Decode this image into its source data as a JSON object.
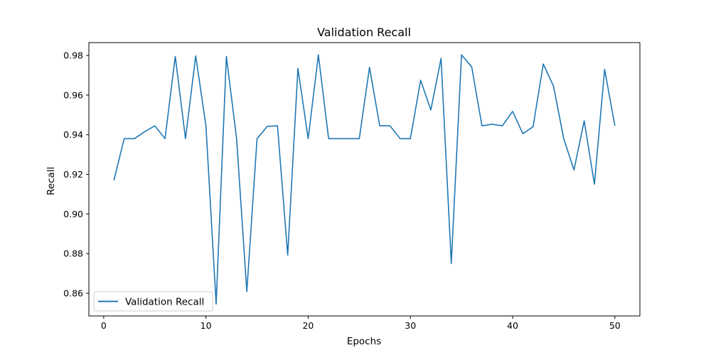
{
  "chart_data": {
    "type": "line",
    "title": "Validation Recall",
    "xlabel": "Epochs",
    "ylabel": "Recall",
    "xlim": [
      -1.45,
      52.45
    ],
    "ylim": [
      0.8485,
      0.9865
    ],
    "xticks": [
      0,
      10,
      20,
      30,
      40,
      50
    ],
    "xtick_labels": [
      "0",
      "10",
      "20",
      "30",
      "40",
      "50"
    ],
    "yticks": [
      0.86,
      0.88,
      0.9,
      0.92,
      0.94,
      0.96,
      0.98
    ],
    "ytick_labels": [
      "0.86",
      "0.88",
      "0.90",
      "0.92",
      "0.94",
      "0.96",
      "0.98"
    ],
    "grid": false,
    "legend_position": "lower-left",
    "series": [
      {
        "name": "Validation Recall",
        "color": "#1f77b4",
        "x": [
          1,
          2,
          3,
          4,
          5,
          6,
          7,
          8,
          9,
          10,
          11,
          12,
          13,
          14,
          15,
          16,
          17,
          18,
          19,
          20,
          21,
          22,
          23,
          24,
          25,
          26,
          27,
          28,
          29,
          30,
          31,
          32,
          33,
          34,
          35,
          36,
          37,
          38,
          39,
          40,
          41,
          42,
          43,
          44,
          45,
          46,
          47,
          48,
          49,
          50
        ],
        "y": [
          0.917,
          0.938,
          0.938,
          0.9415,
          0.9445,
          0.938,
          0.9795,
          0.938,
          0.9798,
          0.9445,
          0.8545,
          0.9795,
          0.938,
          0.8608,
          0.938,
          0.9442,
          0.9445,
          0.8792,
          0.9735,
          0.938,
          0.9803,
          0.938,
          0.938,
          0.938,
          0.938,
          0.974,
          0.9445,
          0.9445,
          0.938,
          0.938,
          0.9675,
          0.9525,
          0.9785,
          0.875,
          0.9803,
          0.9742,
          0.9445,
          0.9453,
          0.9445,
          0.9518,
          0.9405,
          0.944,
          0.9757,
          0.9645,
          0.938,
          0.9222,
          0.947,
          0.915,
          0.973,
          0.9445
        ]
      }
    ]
  }
}
